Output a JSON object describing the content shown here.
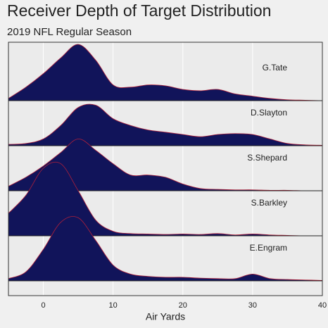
{
  "chart_data": {
    "type": "ridgeline",
    "title": "Receiver Depth of Target Distribution",
    "subtitle": "2019 NFL Regular Season",
    "x_label": "Air Yards",
    "xlim": [
      -5,
      40
    ],
    "xticks": [
      0,
      10,
      20,
      30,
      40
    ],
    "grid": true,
    "x": [
      -5,
      -2.5,
      0,
      2.5,
      5,
      7.5,
      10,
      12.5,
      15,
      17.5,
      20,
      22.5,
      25,
      27.5,
      30,
      32.5,
      35,
      37.5,
      40
    ],
    "series": [
      {
        "name": "G.Tate",
        "color": "#11145a",
        "values": [
          0.05,
          0.3,
          0.6,
          0.95,
          1.25,
          0.9,
          0.35,
          0.3,
          0.35,
          0.33,
          0.25,
          0.22,
          0.25,
          0.15,
          0.1,
          0.05,
          0.02,
          0.01,
          0
        ]
      },
      {
        "name": "D.Slayton",
        "color": "#11145a",
        "values": [
          0.03,
          0.05,
          0.15,
          0.45,
          0.85,
          0.9,
          0.6,
          0.45,
          0.35,
          0.3,
          0.25,
          0.2,
          0.25,
          0.27,
          0.25,
          0.15,
          0.05,
          0.02,
          0.01
        ]
      },
      {
        "name": "S.Shepard",
        "color": "#11145a",
        "values": [
          0.1,
          0.3,
          0.55,
          0.85,
          1.15,
          0.9,
          0.6,
          0.35,
          0.35,
          0.3,
          0.15,
          0.05,
          0.03,
          0.02,
          0.02,
          0.01,
          0.01,
          0,
          0
        ]
      },
      {
        "name": "S.Barkley",
        "color": "#11145a",
        "values": [
          0.5,
          0.9,
          1.5,
          1.6,
          1.0,
          0.35,
          0.1,
          0.05,
          0.04,
          0.03,
          0.04,
          0.03,
          0.05,
          0.02,
          0.04,
          0.02,
          0.01,
          0,
          0
        ]
      },
      {
        "name": "E.Engram",
        "color": "#11145a",
        "values": [
          0.05,
          0.2,
          0.7,
          1.3,
          1.4,
          0.9,
          0.35,
          0.15,
          0.1,
          0.08,
          0.08,
          0.06,
          0.05,
          0.05,
          0.15,
          0.05,
          0.03,
          0.02,
          0.01
        ]
      }
    ]
  }
}
